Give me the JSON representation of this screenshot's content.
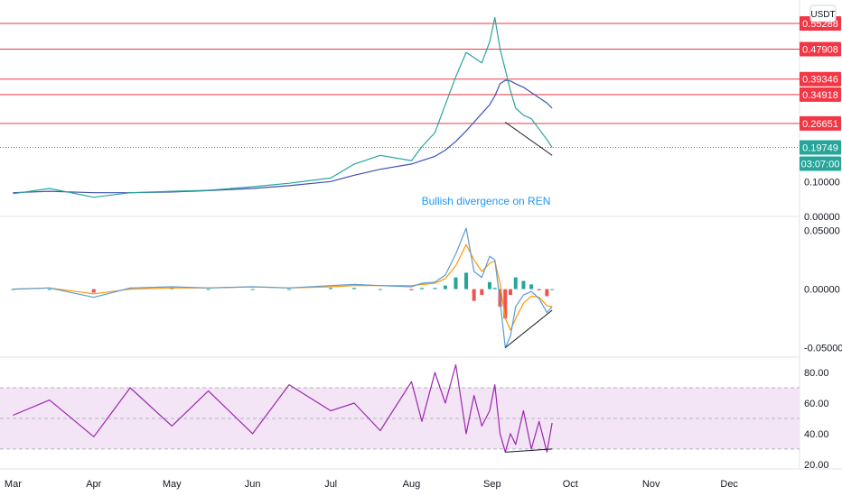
{
  "currency_label": "USDT",
  "annotation": "Bullish divergence on REN",
  "colors": {
    "resistance": "#f23645",
    "price_tag": "#26a69a",
    "ema_long": "#3f51b5",
    "rsi": "#9c27b0",
    "rsi_band": "#f3e5f5",
    "macd_line": "#5b9bd5",
    "signal_line": "#ff9800",
    "hist_up": "#26a69a",
    "hist_down": "#ef5350"
  },
  "chart_data": [
    {
      "type": "line",
      "panel": "price",
      "ylim": [
        0,
        0.62
      ],
      "y_ticks": [
        0.1,
        0.0
      ],
      "y_tick_labels": [
        "0.10000",
        "0.00000"
      ],
      "resistance_levels": [
        0.55288,
        0.47908,
        0.39346,
        0.34918,
        0.26651
      ],
      "resistance_labels": [
        "0.55288",
        "0.47908",
        "0.39346",
        "0.34918",
        "0.26651"
      ],
      "last_price": 0.19749,
      "last_price_label": "0.19749",
      "countdown_label": "03:07:00",
      "x_dates": [
        "03-01",
        "03-15",
        "04-01",
        "04-15",
        "05-01",
        "05-15",
        "06-01",
        "06-15",
        "07-01",
        "07-10",
        "07-20",
        "08-01",
        "08-05",
        "08-10",
        "08-14",
        "08-18",
        "08-22",
        "08-25",
        "08-28",
        "08-31",
        "09-02",
        "09-04",
        "09-06",
        "09-08",
        "09-10",
        "09-13",
        "09-16",
        "09-19",
        "09-22",
        "09-24"
      ],
      "series": [
        {
          "values": [
            0.065,
            0.08,
            0.055,
            0.068,
            0.072,
            0.075,
            0.085,
            0.095,
            0.11,
            0.15,
            0.175,
            0.16,
            0.2,
            0.24,
            0.32,
            0.4,
            0.47,
            0.455,
            0.44,
            0.5,
            0.57,
            0.48,
            0.42,
            0.36,
            0.31,
            0.29,
            0.28,
            0.25,
            0.22,
            0.198
          ]
        },
        {
          "values": [
            0.068,
            0.072,
            0.068,
            0.068,
            0.07,
            0.074,
            0.08,
            0.088,
            0.1,
            0.118,
            0.135,
            0.15,
            0.16,
            0.172,
            0.19,
            0.215,
            0.245,
            0.27,
            0.295,
            0.32,
            0.345,
            0.38,
            0.39,
            0.388,
            0.38,
            0.37,
            0.355,
            0.34,
            0.325,
            0.31
          ]
        }
      ],
      "divergence": {
        "from": [
          "09-06",
          0.27
        ],
        "to": [
          "09-24",
          0.175
        ]
      }
    },
    {
      "type": "bar",
      "panel": "macd",
      "ylim": [
        -0.058,
        0.062
      ],
      "y_ticks": [
        0.05,
        0.0,
        -0.05
      ],
      "y_tick_labels": [
        "0.05000",
        "0.00000",
        "-0.05000"
      ],
      "x_dates": [
        "03-01",
        "03-15",
        "04-01",
        "04-15",
        "05-01",
        "05-15",
        "06-01",
        "06-15",
        "07-01",
        "07-10",
        "07-20",
        "08-01",
        "08-05",
        "08-10",
        "08-14",
        "08-18",
        "08-22",
        "08-25",
        "08-28",
        "08-31",
        "09-02",
        "09-04",
        "09-06",
        "09-08",
        "09-10",
        "09-13",
        "09-16",
        "09-19",
        "09-22",
        "09-24"
      ],
      "macd": [
        0.0,
        0.001,
        -0.007,
        0.001,
        0.002,
        0.001,
        0.002,
        0.001,
        0.003,
        0.004,
        0.003,
        0.002,
        0.005,
        0.006,
        0.012,
        0.03,
        0.052,
        0.015,
        0.01,
        0.028,
        0.025,
        -0.01,
        -0.05,
        -0.04,
        -0.015,
        -0.005,
        -0.002,
        -0.008,
        -0.02,
        -0.015
      ],
      "signal": [
        0.0,
        0.001,
        -0.004,
        0.0,
        0.001,
        0.001,
        0.002,
        0.001,
        0.002,
        0.003,
        0.003,
        0.003,
        0.004,
        0.005,
        0.009,
        0.02,
        0.038,
        0.025,
        0.015,
        0.022,
        0.024,
        0.005,
        -0.025,
        -0.035,
        -0.025,
        -0.012,
        -0.006,
        -0.007,
        -0.014,
        -0.015
      ],
      "divergence": {
        "from": [
          "09-06",
          -0.05
        ],
        "to": [
          "09-24",
          -0.018
        ]
      }
    },
    {
      "type": "line",
      "panel": "rsi",
      "ylim": [
        17,
        90
      ],
      "y_ticks": [
        80,
        60,
        40,
        20
      ],
      "y_tick_labels": [
        "80.00",
        "60.00",
        "40.00",
        "20.00"
      ],
      "band": [
        30,
        70
      ],
      "x_dates": [
        "03-01",
        "03-15",
        "04-01",
        "04-15",
        "05-01",
        "05-15",
        "06-01",
        "06-15",
        "07-01",
        "07-10",
        "07-20",
        "08-01",
        "08-05",
        "08-10",
        "08-14",
        "08-18",
        "08-22",
        "08-25",
        "08-28",
        "08-31",
        "09-02",
        "09-04",
        "09-06",
        "09-08",
        "09-10",
        "09-13",
        "09-16",
        "09-19",
        "09-22",
        "09-24"
      ],
      "values": [
        52,
        62,
        38,
        70,
        45,
        68,
        40,
        72,
        55,
        60,
        42,
        74,
        48,
        80,
        60,
        85,
        40,
        65,
        45,
        55,
        72,
        40,
        28,
        40,
        33,
        55,
        30,
        48,
        28,
        47
      ],
      "divergence": {
        "from": [
          "09-06",
          28
        ],
        "to": [
          "09-24",
          30
        ]
      }
    }
  ],
  "x_axis": {
    "labels": [
      "Mar",
      "Apr",
      "May",
      "Jun",
      "Jul",
      "Aug",
      "Sep",
      "Oct",
      "Nov",
      "Dec"
    ],
    "dates": [
      "03-01",
      "04-01",
      "05-01",
      "06-01",
      "07-01",
      "08-01",
      "09-01",
      "10-01",
      "11-01",
      "12-01"
    ]
  }
}
